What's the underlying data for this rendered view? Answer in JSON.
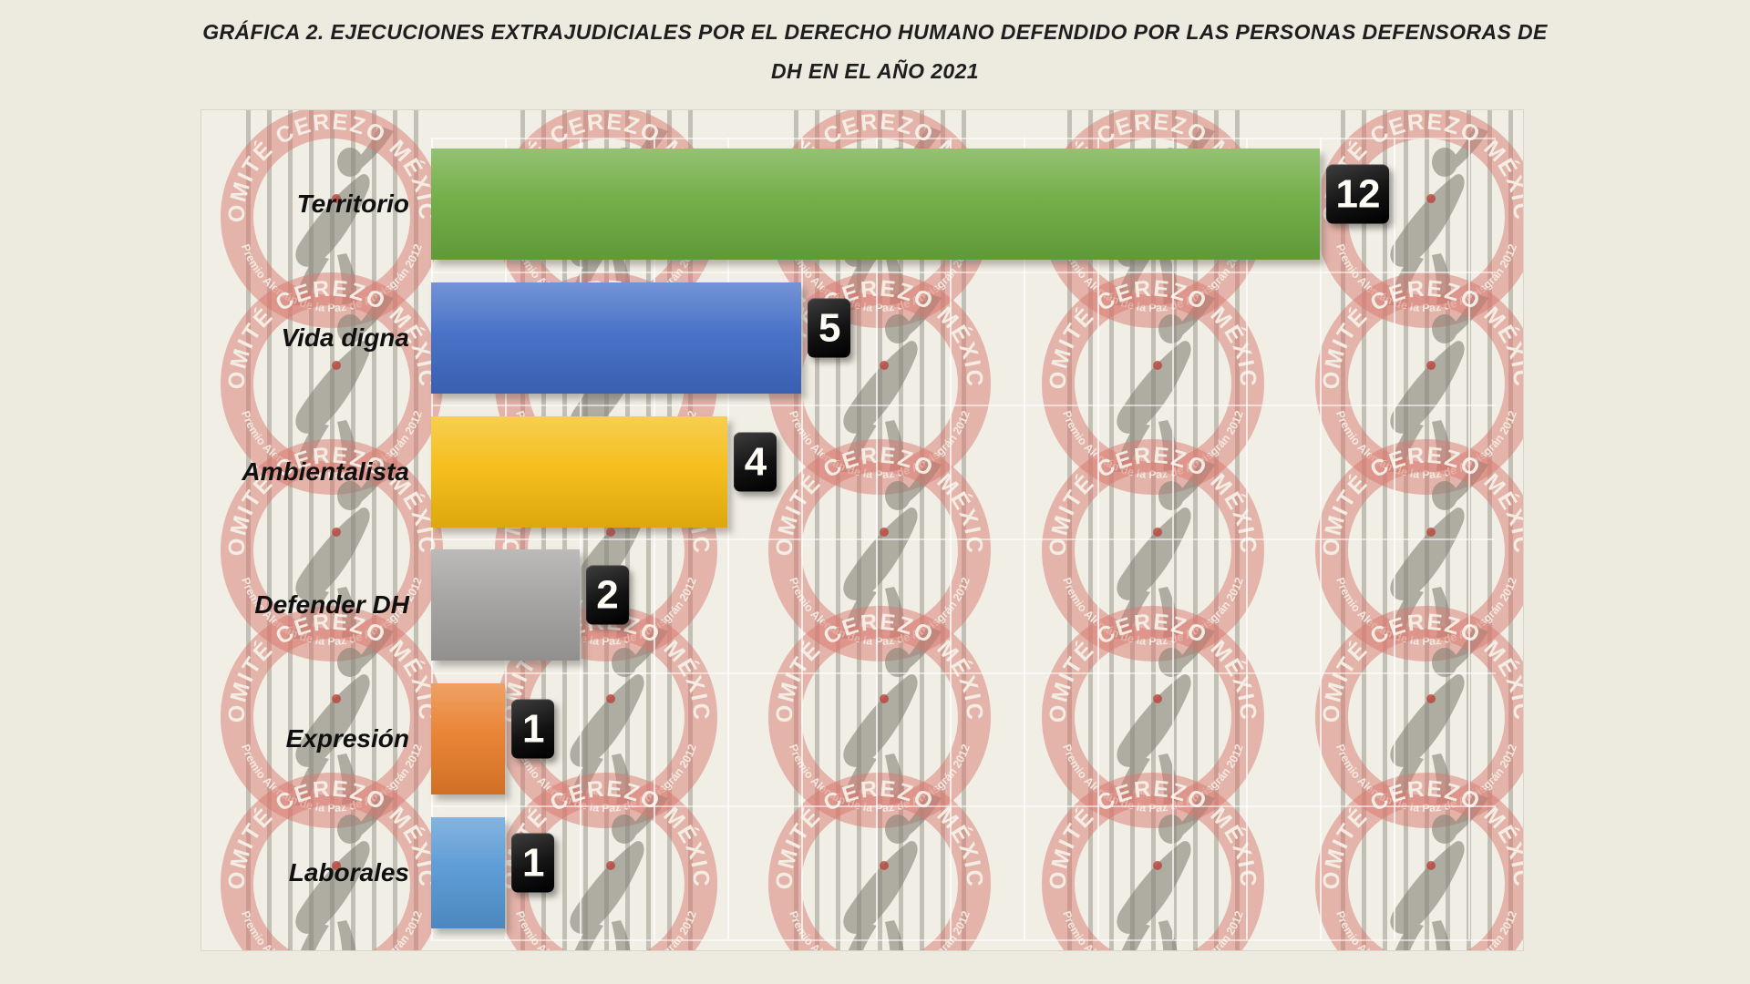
{
  "title": {
    "line1": "GRÁFICA 2. EJECUCIONES EXTRAJUDICIALES POR EL DERECHO HUMANO DEFENDIDO POR LAS PERSONAS DEFENSORAS DE",
    "line2": "DH EN EL AÑO 2021"
  },
  "chart_data": {
    "type": "bar",
    "orientation": "horizontal",
    "title": "GRÁFICA 2. EJECUCIONES EXTRAJUDICIALES POR EL DERECHO HUMANO DEFENDIDO POR LAS PERSONAS DEFENSORAS DE DH EN EL AÑO 2021",
    "categories": [
      "Territorio",
      "Vida digna",
      "Ambientalista",
      "Defender DH",
      "Expresión",
      "Laborales"
    ],
    "values": [
      12,
      5,
      4,
      2,
      1,
      1
    ],
    "bar_colors": [
      "#6baa3e",
      "#3f6ac4",
      "#f5bb10",
      "#a2a09e",
      "#e87d2a",
      "#5597d4"
    ],
    "data_labels": [
      "12",
      "5",
      "4",
      "2",
      "1",
      "1"
    ],
    "data_label_style": "white bold number in black rounded box at bar end",
    "xlim": [
      0,
      14
    ],
    "gridlines": "vertical every 1 unit, white; horizontal row separators, white; no tick labels",
    "legend": "none"
  },
  "watermark": {
    "ring_text_top": "COMITÉ CEREZO MÉXICO",
    "ring_text_bottom": "Premio Alemán de la Paz de Aquisgrán 2012",
    "ring_color": "#d7786e",
    "bars_color": "#7d796f",
    "figure_color": "#87847a",
    "pattern": "tiled circular logo with jail bars and human silhouette"
  },
  "colors": {
    "page_background": "#edeae0",
    "panel_background": "#f1eee5",
    "panel_border": "#d9d6c9",
    "title_text": "#1e1e1e",
    "badge_background": "#000000",
    "badge_text": "#ffffff"
  }
}
